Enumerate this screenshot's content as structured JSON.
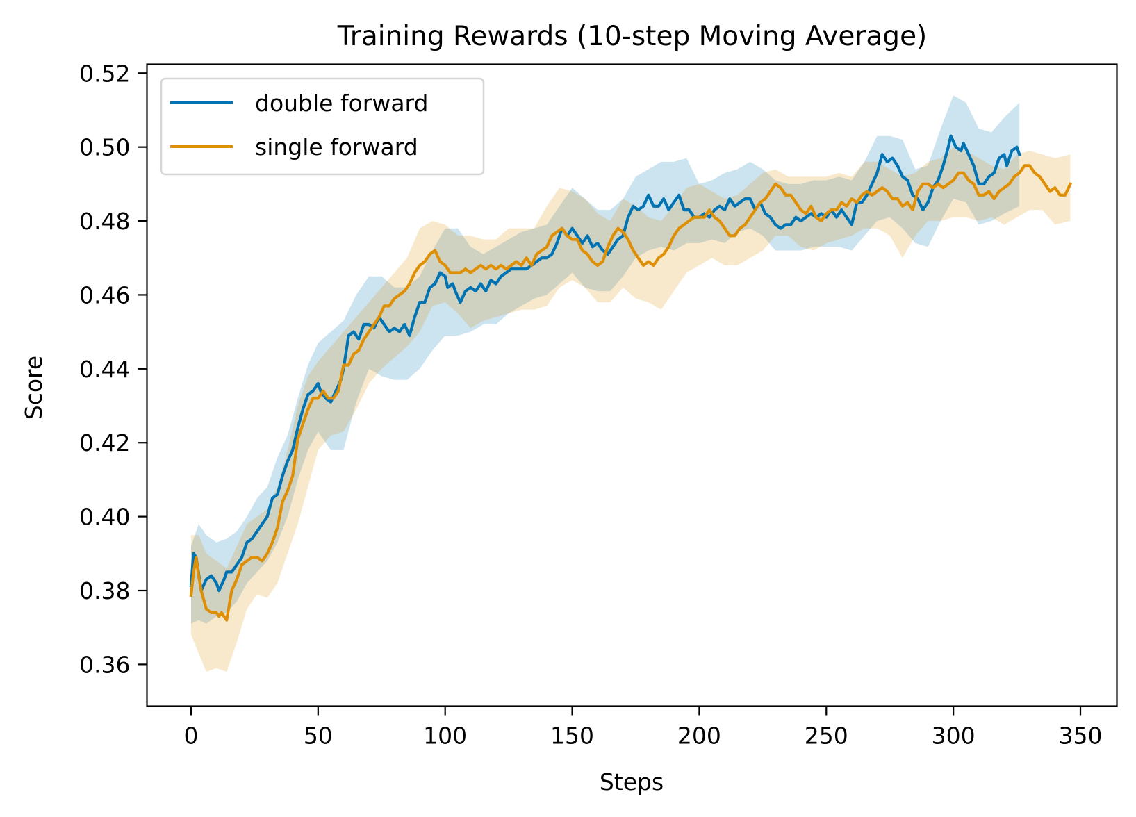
{
  "chart_data": {
    "type": "line",
    "title": "Training Rewards (10-step Moving Average)",
    "xlabel": "Steps",
    "ylabel": "Score",
    "xlim": [
      -17.35,
      364.35
    ],
    "ylim": [
      0.3487,
      0.5224
    ],
    "xticks": [
      0,
      50,
      100,
      150,
      200,
      250,
      300,
      350
    ],
    "xtick_labels": [
      "0",
      "50",
      "100",
      "150",
      "200",
      "250",
      "300",
      "350"
    ],
    "yticks": [
      0.36,
      0.38,
      0.4,
      0.42,
      0.44,
      0.46,
      0.48,
      0.5,
      0.52
    ],
    "ytick_labels": [
      "0.36",
      "0.38",
      "0.40",
      "0.42",
      "0.44",
      "0.46",
      "0.48",
      "0.50",
      "0.52"
    ],
    "grid": false,
    "legend": {
      "placement": "top-left",
      "entries": [
        "double forward",
        "single forward"
      ]
    },
    "series": [
      {
        "name": "double forward",
        "color": "#0173B2",
        "band_color": "#0173B2",
        "band_opacity": 0.2,
        "x": [
          0,
          1,
          2,
          4,
          6,
          8,
          10,
          11,
          13,
          14,
          16,
          18,
          20,
          22,
          24,
          26,
          28,
          30,
          32,
          34,
          36,
          38,
          40,
          42,
          44,
          46,
          48,
          50,
          51,
          53,
          55,
          57,
          59,
          60,
          62,
          64,
          66,
          68,
          70,
          72,
          74,
          76,
          78,
          80,
          82,
          84,
          86,
          88,
          90,
          92,
          94,
          96,
          98,
          100,
          101,
          103,
          104,
          106,
          108,
          110,
          112,
          114,
          116,
          118,
          120,
          122,
          124,
          126,
          128,
          130,
          132,
          134,
          136,
          138,
          140,
          142,
          144,
          146,
          148,
          150,
          152,
          154,
          156,
          158,
          160,
          162,
          164,
          166,
          168,
          170,
          172,
          174,
          176,
          178,
          180,
          182,
          184,
          186,
          188,
          190,
          192,
          194,
          196,
          198,
          200,
          202,
          204,
          206,
          208,
          210,
          212,
          214,
          216,
          218,
          220,
          222,
          224,
          226,
          228,
          230,
          232,
          234,
          236,
          238,
          240,
          242,
          244,
          246,
          248,
          250,
          252,
          254,
          256,
          258,
          260,
          262,
          264,
          266,
          268,
          270,
          272,
          274,
          276,
          278,
          280,
          282,
          284,
          286,
          288,
          290,
          292,
          294,
          296,
          298,
          299,
          301,
          303,
          304,
          306,
          308,
          310,
          312,
          314,
          316,
          318,
          320,
          321,
          323,
          325,
          326
        ],
        "y": [
          0.3813,
          0.39,
          0.389,
          0.38,
          0.383,
          0.384,
          0.382,
          0.38,
          0.383,
          0.385,
          0.385,
          0.387,
          0.389,
          0.393,
          0.394,
          0.396,
          0.398,
          0.4,
          0.405,
          0.406,
          0.411,
          0.415,
          0.418,
          0.424,
          0.429,
          0.433,
          0.434,
          0.436,
          0.434,
          0.432,
          0.431,
          0.434,
          0.437,
          0.44,
          0.449,
          0.45,
          0.448,
          0.452,
          0.452,
          0.451,
          0.454,
          0.452,
          0.45,
          0.451,
          0.45,
          0.452,
          0.449,
          0.454,
          0.458,
          0.458,
          0.462,
          0.463,
          0.466,
          0.465,
          0.462,
          0.463,
          0.461,
          0.458,
          0.461,
          0.462,
          0.461,
          0.463,
          0.461,
          0.464,
          0.463,
          0.465,
          0.466,
          0.467,
          0.467,
          0.467,
          0.467,
          0.468,
          0.469,
          0.47,
          0.47,
          0.471,
          0.474,
          0.478,
          0.476,
          0.478,
          0.476,
          0.474,
          0.476,
          0.473,
          0.474,
          0.472,
          0.471,
          0.473,
          0.475,
          0.476,
          0.481,
          0.484,
          0.483,
          0.484,
          0.487,
          0.484,
          0.484,
          0.486,
          0.483,
          0.485,
          0.487,
          0.483,
          0.483,
          0.481,
          0.481,
          0.482,
          0.481,
          0.483,
          0.484,
          0.483,
          0.486,
          0.484,
          0.485,
          0.486,
          0.486,
          0.483,
          0.485,
          0.482,
          0.481,
          0.479,
          0.478,
          0.479,
          0.479,
          0.481,
          0.48,
          0.481,
          0.482,
          0.481,
          0.482,
          0.481,
          0.483,
          0.481,
          0.483,
          0.481,
          0.479,
          0.485,
          0.485,
          0.487,
          0.49,
          0.493,
          0.498,
          0.496,
          0.497,
          0.495,
          0.492,
          0.491,
          0.487,
          0.486,
          0.483,
          0.485,
          0.489,
          0.491,
          0.495,
          0.5,
          0.503,
          0.5,
          0.499,
          0.501,
          0.498,
          0.495,
          0.49,
          0.49,
          0.492,
          0.493,
          0.497,
          0.498,
          0.495,
          0.499,
          0.5,
          0.498
        ],
        "band_x": [
          0,
          3,
          6,
          10,
          14,
          18,
          22,
          26,
          30,
          34,
          38,
          42,
          46,
          50,
          55,
          60,
          65,
          70,
          75,
          80,
          85,
          90,
          95,
          100,
          105,
          110,
          115,
          120,
          125,
          130,
          135,
          140,
          145,
          150,
          155,
          160,
          165,
          170,
          175,
          180,
          185,
          190,
          195,
          200,
          205,
          210,
          215,
          220,
          225,
          230,
          235,
          240,
          245,
          250,
          255,
          260,
          265,
          270,
          275,
          280,
          285,
          290,
          295,
          300,
          305,
          310,
          315,
          320,
          326
        ],
        "band_lower": [
          0.371,
          0.372,
          0.371,
          0.373,
          0.374,
          0.377,
          0.382,
          0.385,
          0.388,
          0.393,
          0.4,
          0.41,
          0.418,
          0.423,
          0.418,
          0.418,
          0.431,
          0.44,
          0.438,
          0.437,
          0.437,
          0.44,
          0.445,
          0.449,
          0.449,
          0.45,
          0.452,
          0.452,
          0.455,
          0.457,
          0.459,
          0.46,
          0.463,
          0.466,
          0.462,
          0.461,
          0.461,
          0.465,
          0.47,
          0.472,
          0.473,
          0.472,
          0.474,
          0.474,
          0.475,
          0.474,
          0.477,
          0.478,
          0.476,
          0.472,
          0.472,
          0.472,
          0.473,
          0.473,
          0.473,
          0.472,
          0.476,
          0.48,
          0.481,
          0.478,
          0.474,
          0.473,
          0.48,
          0.486,
          0.485,
          0.479,
          0.48,
          0.482,
          0.484
        ],
        "band_upper": [
          0.392,
          0.398,
          0.395,
          0.393,
          0.394,
          0.396,
          0.4,
          0.405,
          0.408,
          0.416,
          0.422,
          0.432,
          0.441,
          0.447,
          0.45,
          0.453,
          0.46,
          0.465,
          0.465,
          0.462,
          0.462,
          0.465,
          0.472,
          0.478,
          0.478,
          0.473,
          0.471,
          0.473,
          0.475,
          0.477,
          0.478,
          0.479,
          0.484,
          0.489,
          0.486,
          0.483,
          0.483,
          0.486,
          0.492,
          0.494,
          0.496,
          0.496,
          0.497,
          0.49,
          0.491,
          0.493,
          0.494,
          0.496,
          0.494,
          0.491,
          0.49,
          0.49,
          0.491,
          0.491,
          0.492,
          0.491,
          0.496,
          0.503,
          0.503,
          0.502,
          0.494,
          0.495,
          0.505,
          0.514,
          0.512,
          0.505,
          0.504,
          0.508,
          0.512
        ]
      },
      {
        "name": "single forward",
        "color": "#DE8F05",
        "band_color": "#DE8F05",
        "band_opacity": 0.2,
        "x": [
          0,
          1,
          2,
          3,
          4,
          6,
          8,
          10,
          11,
          12,
          14,
          16,
          18,
          20,
          22,
          24,
          26,
          28,
          30,
          32,
          34,
          36,
          38,
          40,
          42,
          44,
          46,
          48,
          50,
          52,
          54,
          56,
          58,
          60,
          62,
          64,
          66,
          68,
          70,
          72,
          74,
          76,
          78,
          80,
          82,
          84,
          86,
          88,
          90,
          92,
          94,
          96,
          98,
          100,
          102,
          104,
          106,
          108,
          110,
          112,
          114,
          116,
          118,
          120,
          122,
          124,
          126,
          128,
          130,
          132,
          134,
          136,
          138,
          140,
          142,
          144,
          146,
          148,
          150,
          152,
          154,
          156,
          158,
          160,
          162,
          164,
          166,
          168,
          170,
          172,
          174,
          176,
          178,
          180,
          182,
          184,
          186,
          188,
          190,
          192,
          194,
          196,
          198,
          200,
          202,
          204,
          206,
          208,
          210,
          212,
          214,
          216,
          218,
          220,
          222,
          224,
          226,
          228,
          230,
          232,
          234,
          236,
          238,
          240,
          242,
          244,
          246,
          248,
          250,
          252,
          254,
          256,
          258,
          260,
          262,
          264,
          266,
          268,
          270,
          272,
          274,
          276,
          278,
          280,
          282,
          284,
          286,
          288,
          290,
          292,
          294,
          296,
          298,
          300,
          302,
          304,
          306,
          308,
          310,
          312,
          314,
          316,
          318,
          320,
          322,
          324,
          326,
          328,
          330,
          332,
          334,
          336,
          338,
          340,
          342,
          344,
          346
        ],
        "y": [
          0.3787,
          0.385,
          0.389,
          0.384,
          0.38,
          0.375,
          0.374,
          0.374,
          0.373,
          0.374,
          0.372,
          0.38,
          0.383,
          0.387,
          0.388,
          0.389,
          0.389,
          0.388,
          0.39,
          0.393,
          0.397,
          0.404,
          0.407,
          0.411,
          0.421,
          0.425,
          0.429,
          0.432,
          0.432,
          0.434,
          0.432,
          0.432,
          0.434,
          0.441,
          0.441,
          0.444,
          0.445,
          0.448,
          0.45,
          0.452,
          0.454,
          0.457,
          0.457,
          0.459,
          0.46,
          0.461,
          0.463,
          0.466,
          0.468,
          0.469,
          0.471,
          0.472,
          0.469,
          0.468,
          0.466,
          0.466,
          0.466,
          0.467,
          0.466,
          0.467,
          0.468,
          0.467,
          0.468,
          0.467,
          0.468,
          0.467,
          0.468,
          0.469,
          0.468,
          0.47,
          0.468,
          0.471,
          0.472,
          0.473,
          0.476,
          0.477,
          0.478,
          0.476,
          0.475,
          0.475,
          0.472,
          0.471,
          0.469,
          0.468,
          0.469,
          0.473,
          0.476,
          0.478,
          0.477,
          0.475,
          0.472,
          0.47,
          0.468,
          0.469,
          0.468,
          0.47,
          0.471,
          0.473,
          0.476,
          0.478,
          0.479,
          0.48,
          0.481,
          0.481,
          0.481,
          0.483,
          0.481,
          0.48,
          0.478,
          0.476,
          0.476,
          0.478,
          0.479,
          0.481,
          0.483,
          0.485,
          0.486,
          0.488,
          0.49,
          0.489,
          0.487,
          0.487,
          0.485,
          0.483,
          0.482,
          0.484,
          0.481,
          0.48,
          0.482,
          0.483,
          0.483,
          0.485,
          0.484,
          0.486,
          0.485,
          0.487,
          0.488,
          0.487,
          0.488,
          0.489,
          0.488,
          0.486,
          0.486,
          0.484,
          0.485,
          0.483,
          0.488,
          0.49,
          0.49,
          0.489,
          0.49,
          0.489,
          0.49,
          0.491,
          0.493,
          0.493,
          0.491,
          0.49,
          0.487,
          0.487,
          0.488,
          0.486,
          0.488,
          0.489,
          0.49,
          0.492,
          0.493,
          0.495,
          0.495,
          0.493,
          0.492,
          0.49,
          0.488,
          0.489,
          0.487,
          0.487,
          0.49
        ],
        "band_x": [
          0,
          3,
          6,
          10,
          14,
          18,
          22,
          26,
          30,
          34,
          38,
          42,
          46,
          50,
          55,
          60,
          65,
          70,
          75,
          80,
          85,
          90,
          95,
          100,
          105,
          110,
          115,
          120,
          125,
          130,
          135,
          140,
          145,
          150,
          155,
          160,
          165,
          170,
          175,
          180,
          185,
          190,
          195,
          200,
          205,
          210,
          215,
          220,
          225,
          230,
          235,
          240,
          245,
          250,
          255,
          260,
          265,
          270,
          275,
          280,
          285,
          290,
          295,
          300,
          305,
          310,
          315,
          320,
          325,
          330,
          335,
          340,
          346
        ],
        "band_lower": [
          0.368,
          0.363,
          0.358,
          0.359,
          0.358,
          0.366,
          0.375,
          0.379,
          0.378,
          0.382,
          0.39,
          0.398,
          0.408,
          0.418,
          0.422,
          0.423,
          0.429,
          0.436,
          0.44,
          0.443,
          0.446,
          0.45,
          0.457,
          0.458,
          0.455,
          0.451,
          0.453,
          0.454,
          0.455,
          0.456,
          0.456,
          0.457,
          0.462,
          0.464,
          0.462,
          0.458,
          0.458,
          0.462,
          0.459,
          0.458,
          0.456,
          0.461,
          0.466,
          0.468,
          0.47,
          0.468,
          0.468,
          0.47,
          0.472,
          0.476,
          0.476,
          0.473,
          0.472,
          0.474,
          0.475,
          0.476,
          0.478,
          0.478,
          0.476,
          0.47,
          0.476,
          0.48,
          0.48,
          0.481,
          0.481,
          0.48,
          0.481,
          0.479,
          0.481,
          0.483,
          0.483,
          0.479,
          0.48
        ],
        "band_upper": [
          0.395,
          0.395,
          0.39,
          0.388,
          0.386,
          0.392,
          0.398,
          0.4,
          0.402,
          0.408,
          0.418,
          0.43,
          0.438,
          0.442,
          0.446,
          0.45,
          0.454,
          0.458,
          0.462,
          0.466,
          0.47,
          0.478,
          0.48,
          0.479,
          0.476,
          0.476,
          0.475,
          0.475,
          0.478,
          0.478,
          0.478,
          0.484,
          0.489,
          0.488,
          0.486,
          0.482,
          0.48,
          0.486,
          0.484,
          0.481,
          0.48,
          0.484,
          0.489,
          0.49,
          0.488,
          0.486,
          0.487,
          0.49,
          0.493,
          0.494,
          0.492,
          0.492,
          0.492,
          0.492,
          0.493,
          0.492,
          0.496,
          0.496,
          0.494,
          0.492,
          0.493,
          0.496,
          0.497,
          0.5,
          0.499,
          0.497,
          0.495,
          0.494,
          0.498,
          0.499,
          0.498,
          0.497,
          0.498
        ]
      }
    ]
  }
}
